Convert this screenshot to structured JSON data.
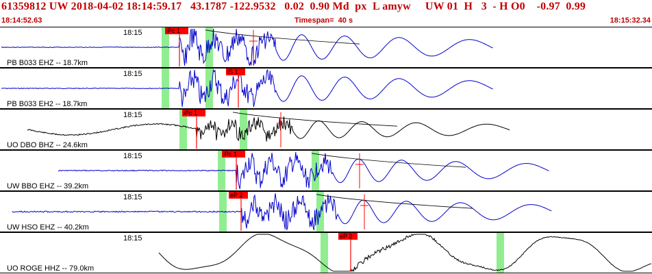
{
  "header": {
    "title": "61359812 UW 2018-04-02 18:14:59.17   43.1787 -122.9532   0.02  0.90 Md  px  L amyw     UW 01  H   3  - H O0    -0.97  0.99",
    "start_time": "18:14:52.63",
    "timespan": "Timespan=  40 s",
    "end_time": "18:15:32.34"
  },
  "colors": {
    "header_text": "#c00000",
    "trace_blue": "#0000cc",
    "trace_black": "#000000",
    "pick_red": "#ff0000",
    "window_green": "#90ee90"
  },
  "panels": [
    {
      "time_label": "18:15",
      "channel_label": "PB B033 EHZ -- 18.7km",
      "color": "blue",
      "pick": "iPc 1",
      "has_pick_marker": true,
      "has_coda": true
    },
    {
      "time_label": "18:15",
      "channel_label": "PB B033 EH2 -- 18.7km",
      "color": "blue",
      "pick": "iS 1",
      "has_pick_marker": false,
      "has_coda": false
    },
    {
      "time_label": "18:15",
      "channel_label": "UO DBO BHZ -- 24.6km",
      "color": "black",
      "pick": "iPc 1",
      "has_pick_marker": true,
      "has_coda": true
    },
    {
      "time_label": "18:15",
      "channel_label": "UW BBO EHZ -- 39.2km",
      "color": "blue",
      "pick": "iPc 1",
      "has_pick_marker": true,
      "has_coda": true
    },
    {
      "time_label": "18:15",
      "channel_label": "UW HSO EHZ -- 40.2km",
      "color": "blue",
      "pick": "eP 2",
      "has_pick_marker": true,
      "has_coda": true
    },
    {
      "time_label": "18:15",
      "channel_label": "UO ROGE HHZ -- 79.0km",
      "color": "black",
      "pick": "eP 2",
      "has_pick_marker": false,
      "has_coda": false
    }
  ]
}
